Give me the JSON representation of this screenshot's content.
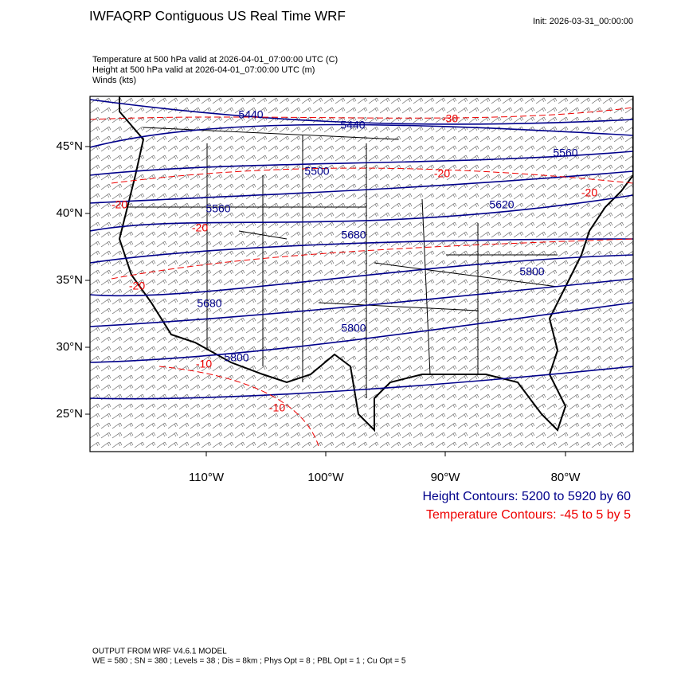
{
  "header": {
    "title": "IWFAQRP Contiguous US Real Time WRF",
    "init": "Init: 2026-03-31_00:00:00"
  },
  "fields": [
    "Temperature at 500 hPa valid at 2026-04-01_07:00:00 UTC   (C)",
    "Height at 500 hPa valid at 2026-04-01_07:00:00 UTC   (m)",
    "Winds   (kts)"
  ],
  "map": {
    "lat_labels": [
      "45°N",
      "40°N",
      "35°N",
      "30°N",
      "25°N"
    ],
    "lon_labels": [
      "110°W",
      "100°W",
      "90°W",
      "80°W"
    ],
    "height_labels": [
      "5440",
      "5440",
      "5560",
      "5500",
      "5560",
      "5620",
      "5680",
      "5800",
      "5680",
      "5800",
      "5800"
    ],
    "temp_labels": [
      "-30",
      "-20",
      "-20",
      "-20",
      "-20",
      "-20",
      "-10",
      "-10"
    ]
  },
  "legend": {
    "height": "Height Contours: 5200 to 5920 by 60",
    "temperature": "Temperature Contours: -45 to 5 by 5"
  },
  "footer": {
    "model": "OUTPUT FROM WRF V4.6.1 MODEL",
    "settings": "WE = 580 ; SN = 380 ; Levels = 38 ; Dis = 8km ; Phys Opt = 8 ; PBL Opt = 1 ; Cu Opt = 5"
  }
}
